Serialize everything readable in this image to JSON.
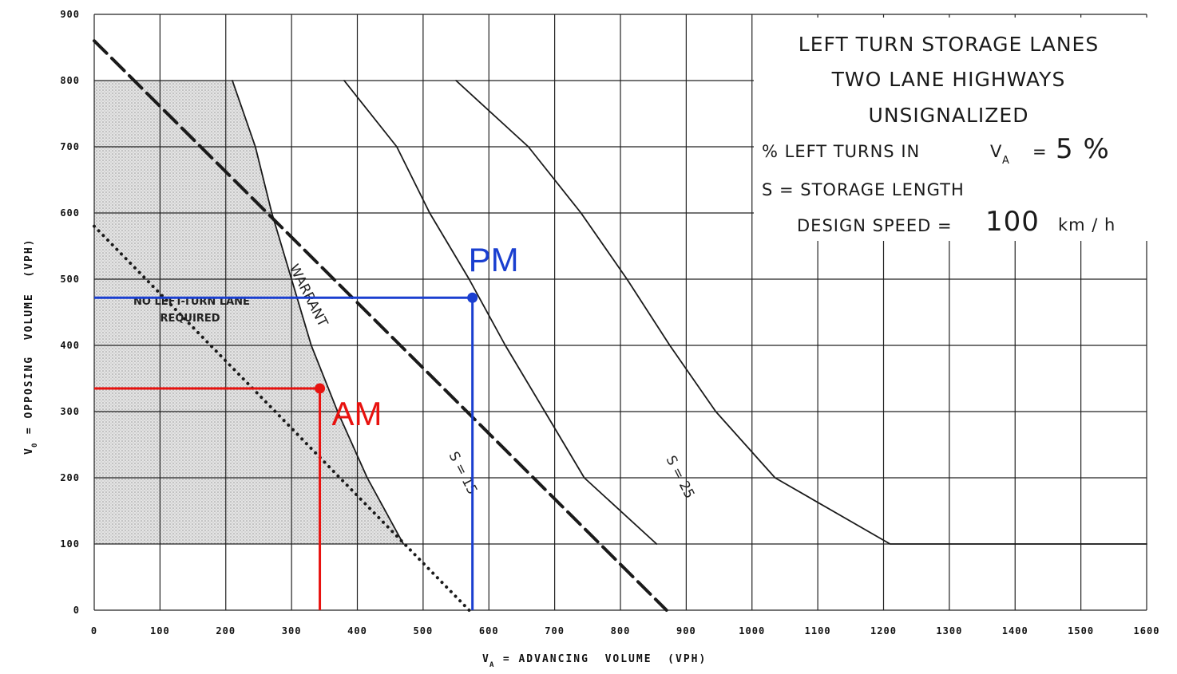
{
  "chart_data": {
    "type": "line",
    "title_lines": [
      "LEFT TURN STORAGE LANES",
      "TWO LANE HIGHWAYS",
      "UNSIGNALIZED"
    ],
    "info": {
      "left_turns_label": "% LEFT TURNS IN",
      "va_symbol": "V",
      "va_sub": "A",
      "left_turns_eq": "=",
      "left_turns_value": "5 %",
      "storage_label": "S = STORAGE LENGTH",
      "speed_label": "DESIGN SPEED =",
      "speed_value": "100",
      "speed_unit": "km / h"
    },
    "xlabel": "V",
    "xlabel_sub": "A",
    "xlabel_rest": " = ADVANCING  VOLUME  (VPH)",
    "ylabel": "V",
    "ylabel_sub": "0",
    "ylabel_rest": " = OPPOSING  VOLUME  (VPH)",
    "xlim": [
      0,
      1600
    ],
    "ylim": [
      0,
      900
    ],
    "x_ticks": [
      0,
      100,
      200,
      300,
      400,
      500,
      600,
      700,
      800,
      900,
      1000,
      1100,
      1200,
      1300,
      1400,
      1500,
      1600
    ],
    "y_ticks": [
      0,
      100,
      200,
      300,
      400,
      500,
      600,
      700,
      800,
      900
    ],
    "grid": true,
    "region_label_1": "NO LEFT-TURN LANE",
    "region_label_2": "REQUIRED",
    "series": [
      {
        "name": "WARRANT",
        "style": "solid",
        "points": [
          [
            210,
            800
          ],
          [
            245,
            700
          ],
          [
            270,
            600
          ],
          [
            300,
            500
          ],
          [
            330,
            400
          ],
          [
            370,
            300
          ],
          [
            415,
            200
          ],
          [
            470,
            100
          ]
        ]
      },
      {
        "name": "S = 15",
        "style": "solid",
        "points": [
          [
            380,
            800
          ],
          [
            460,
            700
          ],
          [
            510,
            600
          ],
          [
            570,
            500
          ],
          [
            625,
            400
          ],
          [
            685,
            300
          ],
          [
            745,
            200
          ],
          [
            855,
            100
          ]
        ]
      },
      {
        "name": "S = 25",
        "style": "solid",
        "points": [
          [
            550,
            800
          ],
          [
            660,
            700
          ],
          [
            740,
            600
          ],
          [
            810,
            500
          ],
          [
            875,
            400
          ],
          [
            945,
            300
          ],
          [
            1035,
            200
          ],
          [
            1210,
            100
          ],
          [
            1600,
            100
          ]
        ]
      },
      {
        "style": "dashed",
        "points": [
          [
            0,
            860
          ],
          [
            870,
            0
          ]
        ]
      },
      {
        "style": "dotted",
        "points": [
          [
            0,
            580
          ],
          [
            570,
            0
          ]
        ]
      }
    ],
    "shaded_region": [
      [
        0,
        800
      ],
      [
        210,
        800
      ],
      [
        245,
        700
      ],
      [
        270,
        600
      ],
      [
        300,
        500
      ],
      [
        330,
        400
      ],
      [
        370,
        300
      ],
      [
        415,
        200
      ],
      [
        470,
        100
      ],
      [
        0,
        100
      ]
    ],
    "points": [
      {
        "label": "PM",
        "x": 575,
        "y": 472,
        "color": "#1a3fd0"
      },
      {
        "label": "AM",
        "x": 343,
        "y": 335,
        "color": "#e8120f"
      }
    ]
  }
}
